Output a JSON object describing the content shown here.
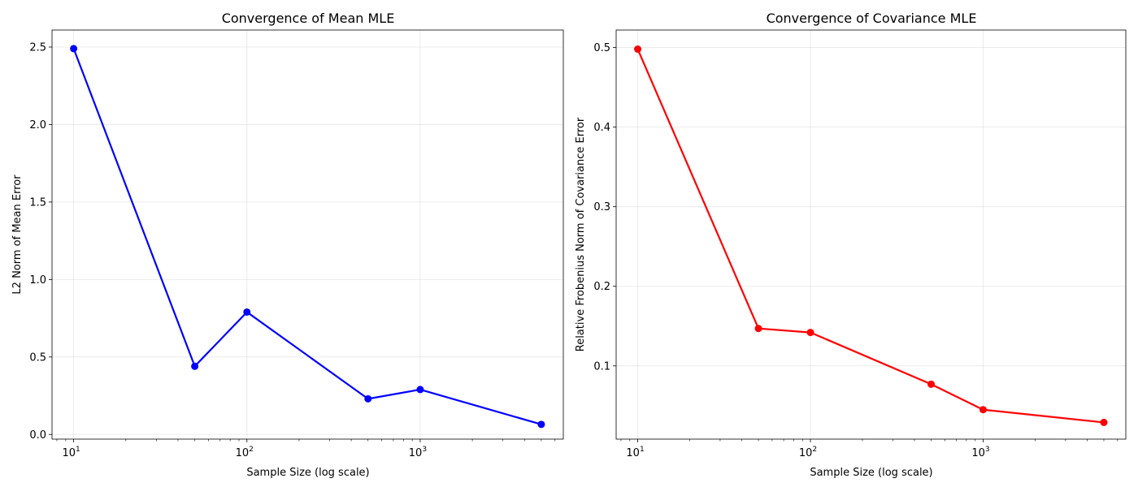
{
  "chart_data": [
    {
      "type": "line",
      "title": "Convergence of Mean MLE",
      "xlabel": "Sample Size (log scale)",
      "ylabel": "L2 Norm of Mean Error",
      "x_scale": "log",
      "xlim": [
        7.5,
        6700
      ],
      "ylim": [
        -0.03,
        2.61
      ],
      "x_ticks": [
        10,
        100,
        1000
      ],
      "x_tick_labels": [
        {
          "base": "10",
          "exp": "1"
        },
        {
          "base": "10",
          "exp": "2"
        },
        {
          "base": "10",
          "exp": "3"
        }
      ],
      "y_ticks": [
        0.0,
        0.5,
        1.0,
        1.5,
        2.0,
        2.5
      ],
      "y_tick_labels": [
        "0.0",
        "0.5",
        "1.0",
        "1.5",
        "2.0",
        "2.5"
      ],
      "grid": true,
      "series": [
        {
          "color": "#0000ff",
          "marker": "circle",
          "x": [
            10,
            50,
            100,
            500,
            1000,
            5000
          ],
          "y": [
            2.49,
            0.44,
            0.79,
            0.23,
            0.29,
            0.065
          ]
        }
      ]
    },
    {
      "type": "line",
      "title": "Convergence of Covariance MLE",
      "xlabel": "Sample Size (log scale)",
      "ylabel": "Relative Frobenius Norm of Covariance Error",
      "x_scale": "log",
      "xlim": [
        7.5,
        6700
      ],
      "ylim": [
        0.008,
        0.522
      ],
      "x_ticks": [
        10,
        100,
        1000
      ],
      "x_tick_labels": [
        {
          "base": "10",
          "exp": "1"
        },
        {
          "base": "10",
          "exp": "2"
        },
        {
          "base": "10",
          "exp": "3"
        }
      ],
      "y_ticks": [
        0.1,
        0.2,
        0.3,
        0.4,
        0.5
      ],
      "y_tick_labels": [
        "0.1",
        "0.2",
        "0.3",
        "0.4",
        "0.5"
      ],
      "grid": true,
      "series": [
        {
          "color": "#ff0000",
          "marker": "circle",
          "x": [
            10,
            50,
            100,
            500,
            1000,
            5000
          ],
          "y": [
            0.498,
            0.147,
            0.142,
            0.077,
            0.045,
            0.029
          ]
        }
      ]
    }
  ]
}
